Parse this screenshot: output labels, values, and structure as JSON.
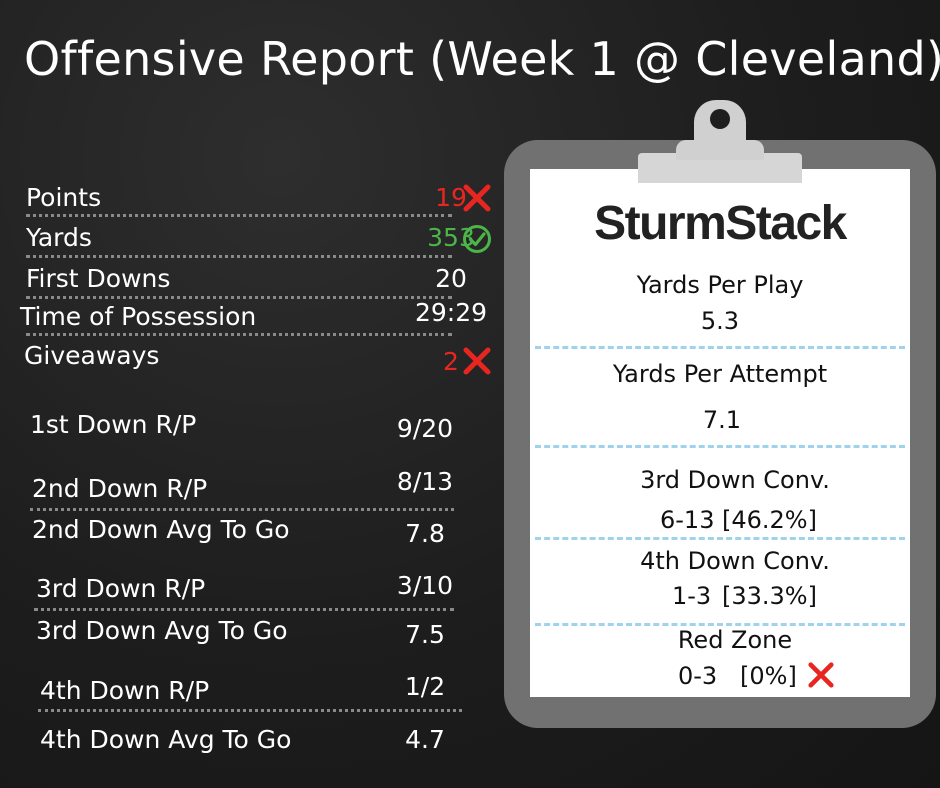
{
  "title": "Offensive Report (Week 1 @ Cleveland)",
  "summary": [
    {
      "label": "Points",
      "value": "19",
      "value_color": "#e8261f",
      "mark": "x-icon"
    },
    {
      "label": "Yards",
      "value": "353",
      "value_color": "#4bb54a",
      "mark": "check-circle-icon"
    },
    {
      "label": "First Downs",
      "value": "20",
      "value_color": "#ffffff",
      "mark": ""
    },
    {
      "label": "Time of Possession",
      "value": "29:29",
      "value_color": "#ffffff",
      "mark": ""
    },
    {
      "label": "Giveaways",
      "value": "2",
      "value_color": "#e8261f",
      "mark": "x-icon"
    }
  ],
  "downs": [
    {
      "label": "1st Down R/P",
      "value": "9/20"
    },
    {
      "label": "2nd Down R/P",
      "value": "8/13"
    },
    {
      "label": "2nd Down Avg To Go",
      "value": "7.8"
    },
    {
      "label": "3rd Down R/P",
      "value": "3/10"
    },
    {
      "label": "3rd Down Avg To Go",
      "value": "7.5"
    },
    {
      "label": "4th Down R/P",
      "value": "1/2"
    },
    {
      "label": "4th Down Avg To Go",
      "value": "4.7"
    }
  ],
  "clipboard": {
    "logo": "SturmStack",
    "stats": [
      {
        "label": "Yards Per Play",
        "value": "5.3"
      },
      {
        "label": "Yards Per Attempt",
        "value": "7.1"
      },
      {
        "label": "3rd Down Conv.",
        "value": "6-13",
        "pct": "[46.2%]"
      },
      {
        "label": "4th Down Conv.",
        "value": "1-3",
        "pct": "[33.3%]"
      },
      {
        "label": "Red Zone",
        "value": "0-3",
        "pct": "[0%]",
        "pct_color": "#e8261f",
        "mark": "x-icon"
      }
    ]
  },
  "colors": {
    "red": "#e8261f",
    "green": "#4bb54a",
    "dash": "#9fd3ec"
  }
}
